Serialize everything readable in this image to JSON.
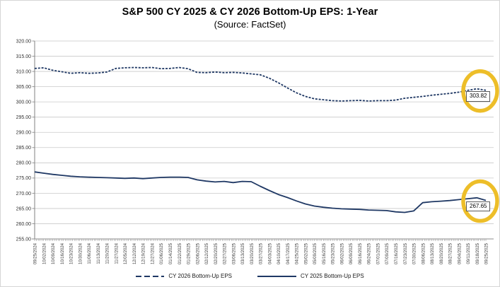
{
  "chart_data": {
    "type": "line",
    "title": "S&P 500 CY 2025 & CY 2026 Bottom-Up EPS: 1-Year",
    "subtitle": "(Source: FactSet)",
    "ylim": [
      255,
      320
    ],
    "y_tick_step": 5,
    "y_tick_labels": [
      "320.00",
      "315.00",
      "310.00",
      "305.00",
      "300.00",
      "295.00",
      "290.00",
      "285.00",
      "280.00",
      "275.00",
      "270.00",
      "265.00",
      "260.00",
      "255.00"
    ],
    "grid": "horizontal",
    "legend_position": "bottom",
    "line_color": "#1F3864",
    "highlight_color": "#EDBE29",
    "x_labels": [
      "09/25/2024",
      "10/02/2024",
      "10/09/2024",
      "10/16/2024",
      "10/23/2024",
      "10/30/2024",
      "11/06/2024",
      "11/13/2024",
      "11/20/2024",
      "11/27/2024",
      "12/05/2024",
      "12/12/2024",
      "12/19/2024",
      "12/27/2024",
      "01/06/2025",
      "01/14/2025",
      "01/22/2025",
      "01/29/2025",
      "02/06/2025",
      "02/12/2025",
      "02/20/2025",
      "02/27/2025",
      "03/06/2025",
      "03/13/2025",
      "03/20/2025",
      "03/27/2025",
      "04/03/2025",
      "04/10/2025",
      "04/17/2025",
      "04/25/2025",
      "05/02/2025",
      "05/09/2025",
      "05/16/2025",
      "05/23/2025",
      "06/02/2025",
      "06/09/2025",
      "06/16/2025",
      "06/24/2025",
      "07/01/2025",
      "07/09/2025",
      "07/16/2025",
      "07/23/2025",
      "07/30/2025",
      "08/06/2025",
      "08/13/2025",
      "08/20/2025",
      "08/27/2025",
      "09/04/2025",
      "09/11/2025",
      "09/18/2025",
      "09/25/2025"
    ],
    "series": [
      {
        "name": "CY 2026 Bottom-Up EPS",
        "style": "dashed",
        "color": "#1F3864",
        "values": [
          311.0,
          311.2,
          310.4,
          309.9,
          309.4,
          309.6,
          309.4,
          309.5,
          309.8,
          311.0,
          311.2,
          311.3,
          311.2,
          311.3,
          310.9,
          311.0,
          311.3,
          310.9,
          309.7,
          309.6,
          309.8,
          309.6,
          309.7,
          309.5,
          309.2,
          308.9,
          307.8,
          306.3,
          304.6,
          303.0,
          301.8,
          301.0,
          300.7,
          300.4,
          300.3,
          300.4,
          300.5,
          300.3,
          300.4,
          300.4,
          300.6,
          301.2,
          301.5,
          301.8,
          302.2,
          302.5,
          302.8,
          303.2,
          303.8,
          304.3,
          303.82
        ]
      },
      {
        "name": "CY 2025 Bottom-Up EPS",
        "style": "solid",
        "color": "#1F3864",
        "values": [
          277.0,
          276.6,
          276.2,
          275.9,
          275.6,
          275.4,
          275.3,
          275.2,
          275.1,
          275.0,
          274.9,
          275.0,
          274.8,
          275.0,
          275.2,
          275.3,
          275.3,
          275.2,
          274.4,
          274.0,
          273.7,
          273.9,
          273.5,
          273.9,
          273.8,
          272.3,
          270.9,
          269.6,
          268.6,
          267.5,
          266.5,
          265.8,
          265.4,
          265.1,
          264.9,
          264.8,
          264.7,
          264.5,
          264.4,
          264.3,
          263.9,
          263.7,
          264.2,
          266.9,
          267.2,
          267.4,
          267.6,
          267.9,
          268.2,
          268.5,
          267.65
        ]
      }
    ],
    "annotations": [
      {
        "series": "CY 2026 Bottom-Up EPS",
        "label": "303.82",
        "highlight": "yellow-circle"
      },
      {
        "series": "CY 2025 Bottom-Up EPS",
        "label": "267.65",
        "highlight": "yellow-circle"
      }
    ]
  }
}
